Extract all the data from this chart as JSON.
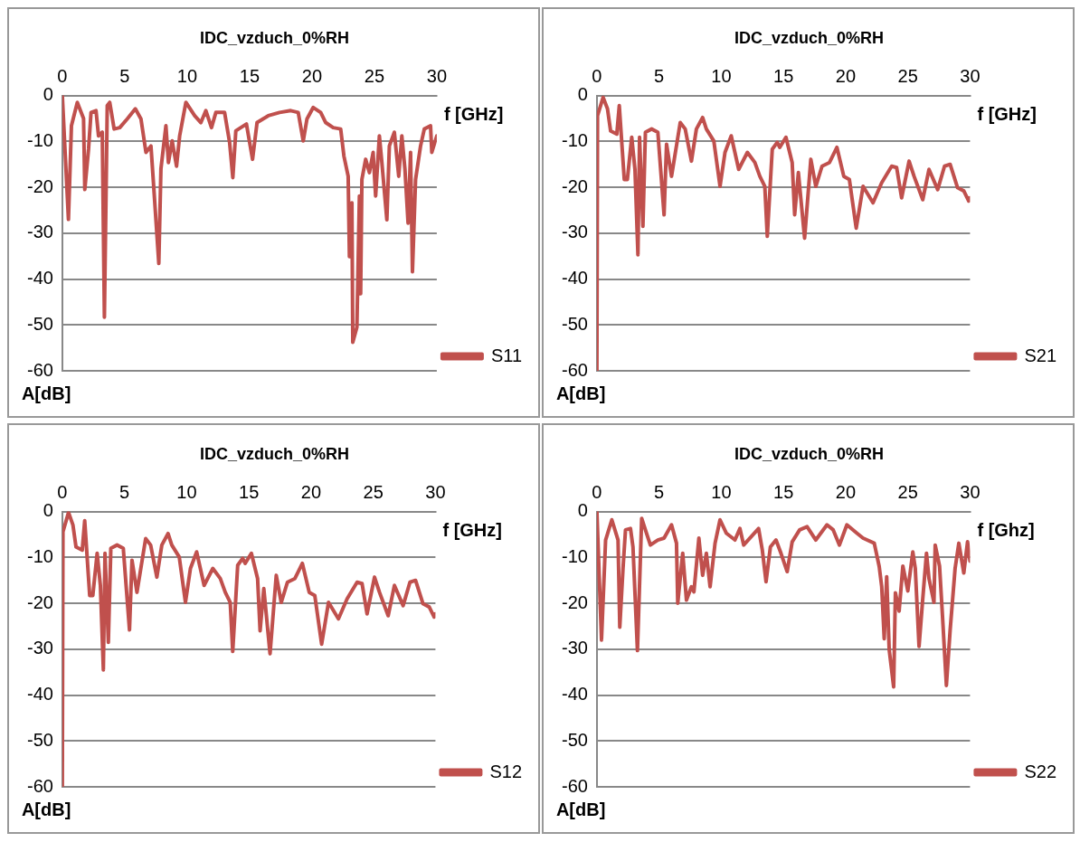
{
  "chart_data": [
    {
      "type": "line",
      "title": "IDC_vzduch_0%RH",
      "xlabel": "f [GHz]",
      "ylabel": "A[dB]",
      "xlim": [
        0,
        30
      ],
      "xticks": [
        0,
        5,
        10,
        15,
        20,
        25,
        30
      ],
      "ylim": [
        -60,
        0
      ],
      "yticks": [
        -60,
        -50,
        -40,
        -30,
        -20,
        -10,
        0
      ],
      "grid": "y",
      "legend": "right",
      "series": [
        {
          "name": "S11",
          "color": "#c0504d",
          "x": [
            0,
            0.49,
            0.73,
            1.2,
            1.7,
            1.8,
            2.1,
            2.3,
            2.7,
            2.9,
            3.2,
            3.37,
            3.6,
            3.8,
            4.15,
            4.6,
            5.2,
            5.85,
            6.3,
            6.7,
            7.1,
            7.3,
            7.73,
            7.9,
            8.3,
            8.5,
            8.8,
            9.15,
            9.4,
            9.9,
            10.6,
            11.1,
            11.5,
            11.95,
            12.3,
            13.0,
            13.4,
            13.66,
            13.9,
            14.75,
            15.24,
            15.6,
            16.5,
            17.4,
            18.3,
            18.9,
            19.3,
            19.6,
            20.1,
            20.7,
            21.1,
            21.7,
            22.3,
            22.56,
            22.9,
            23.0,
            23.2,
            23.27,
            23.6,
            23.8,
            23.9,
            24.0,
            24.3,
            24.6,
            24.9,
            25.1,
            25.4,
            25.6,
            26.0,
            26.2,
            26.6,
            26.95,
            27.2,
            27.45,
            27.7,
            27.9,
            28.05,
            28.3,
            28.7,
            29.0,
            29.5,
            29.6,
            30
          ],
          "values": [
            0,
            -27,
            -6.6,
            -1.5,
            -5,
            -20.5,
            -11.7,
            -3.7,
            -3.3,
            -8.8,
            -8,
            -48.3,
            -2.2,
            -1.5,
            -7.3,
            -7,
            -5.1,
            -2.9,
            -5.1,
            -12.4,
            -11,
            -19,
            -36.6,
            -16,
            -6.6,
            -14.6,
            -9.9,
            -15.4,
            -8.8,
            -1.5,
            -4.4,
            -5.9,
            -3.3,
            -7,
            -3.7,
            -3.7,
            -10.2,
            -17.9,
            -7.7,
            -6.2,
            -13.9,
            -5.9,
            -4.4,
            -3.7,
            -3.3,
            -3.7,
            -9.9,
            -5.1,
            -2.6,
            -3.7,
            -5.9,
            -7,
            -7.3,
            -13.2,
            -17.6,
            -35.1,
            -23.4,
            -53.8,
            -50.5,
            -21.9,
            -43.2,
            -18.3,
            -13.9,
            -16.8,
            -12.4,
            -21.9,
            -8.8,
            -14.6,
            -27.1,
            -11,
            -8,
            -17.6,
            -8.8,
            -16.1,
            -27.8,
            -12.4,
            -38.4,
            -18.3,
            -11,
            -7.3,
            -6.6,
            -12.4,
            -8.8
          ]
        }
      ]
    },
    {
      "type": "line",
      "title": "IDC_vzduch_0%RH",
      "xlabel": "f [GHz]",
      "ylabel": "A[dB]",
      "xlim": [
        0,
        30
      ],
      "xticks": [
        0,
        5,
        10,
        15,
        20,
        25,
        30
      ],
      "ylim": [
        -60,
        0
      ],
      "yticks": [
        -60,
        -50,
        -40,
        -30,
        -20,
        -10,
        0
      ],
      "grid": "y",
      "legend": "right",
      "series": [
        {
          "name": "S21",
          "color": "#c0504d",
          "x": [
            0,
            0.05,
            0.5,
            0.85,
            1.1,
            1.6,
            1.8,
            2.2,
            2.45,
            2.8,
            3.06,
            3.3,
            3.43,
            3.7,
            3.9,
            4.4,
            4.9,
            5.4,
            5.6,
            6.0,
            6.7,
            7.1,
            7.6,
            8.0,
            8.5,
            8.8,
            9.4,
            9.9,
            10.3,
            10.8,
            11.4,
            12.1,
            12.7,
            13.1,
            13.5,
            13.7,
            14.1,
            14.5,
            14.7,
            15.2,
            15.7,
            15.9,
            16.2,
            16.7,
            17.2,
            17.6,
            18.1,
            18.7,
            19.3,
            19.85,
            20.3,
            20.85,
            21.4,
            22.2,
            22.9,
            23.7,
            24.1,
            24.5,
            25.1,
            25.5,
            26.2,
            26.7,
            27.4,
            27.95,
            28.4,
            29.0,
            29.5,
            29.9,
            30
          ],
          "values": [
            -60,
            -4.4,
            -0.4,
            -2.9,
            -7.7,
            -8.4,
            -2.2,
            -18.3,
            -18.3,
            -9.1,
            -16.1,
            -34.7,
            -9.1,
            -28.5,
            -8,
            -7.3,
            -8,
            -26,
            -10.6,
            -17.6,
            -5.9,
            -7.3,
            -14.3,
            -7.3,
            -4.8,
            -7.3,
            -9.9,
            -19.8,
            -12.4,
            -8.8,
            -16.1,
            -12.4,
            -14.6,
            -17.6,
            -19.8,
            -30.7,
            -11.7,
            -10.2,
            -11.3,
            -9.1,
            -14.6,
            -26,
            -16.8,
            -31.1,
            -13.9,
            -19.8,
            -15.4,
            -14.6,
            -11.3,
            -17.6,
            -18.3,
            -28.9,
            -19.8,
            -23.4,
            -19,
            -15.4,
            -15.7,
            -22.3,
            -14.3,
            -17.6,
            -22.7,
            -16.1,
            -20.5,
            -15.4,
            -15,
            -20.1,
            -20.8,
            -23,
            -22.3
          ]
        }
      ]
    },
    {
      "type": "line",
      "title": "IDC_vzduch_0%RH",
      "xlabel": "f [GHz]",
      "ylabel": "A[dB]",
      "xlim": [
        0,
        30
      ],
      "xticks": [
        0,
        5,
        10,
        15,
        20,
        25,
        30
      ],
      "ylim": [
        -60,
        0
      ],
      "yticks": [
        -60,
        -50,
        -40,
        -30,
        -20,
        -10,
        0
      ],
      "grid": "y",
      "legend": "right",
      "series": [
        {
          "name": "S12",
          "color": "#c0504d",
          "x": [
            0,
            0.05,
            0.5,
            0.85,
            1.1,
            1.6,
            1.8,
            2.2,
            2.45,
            2.8,
            3.06,
            3.3,
            3.43,
            3.7,
            3.9,
            4.4,
            4.9,
            5.4,
            5.6,
            6.0,
            6.7,
            7.1,
            7.6,
            8.0,
            8.5,
            8.8,
            9.4,
            9.9,
            10.3,
            10.8,
            11.4,
            12.1,
            12.7,
            13.1,
            13.5,
            13.7,
            14.1,
            14.5,
            14.7,
            15.2,
            15.7,
            15.9,
            16.2,
            16.7,
            17.2,
            17.6,
            18.1,
            18.7,
            19.3,
            19.85,
            20.3,
            20.85,
            21.4,
            22.2,
            22.9,
            23.7,
            24.1,
            24.5,
            25.1,
            25.5,
            26.2,
            26.7,
            27.4,
            27.95,
            28.4,
            29.0,
            29.5,
            29.9,
            30
          ],
          "values": [
            -60,
            -4.4,
            -0.2,
            -2.9,
            -7.7,
            -8.4,
            -2,
            -18.3,
            -18.3,
            -9.1,
            -16.1,
            -34.5,
            -9.1,
            -28.5,
            -8,
            -7.3,
            -8,
            -25.8,
            -10.6,
            -17.6,
            -5.9,
            -7.3,
            -14.3,
            -7.3,
            -4.8,
            -7.3,
            -9.9,
            -19.8,
            -12.4,
            -8.8,
            -16.1,
            -12.4,
            -14.6,
            -17.6,
            -19.8,
            -30.5,
            -11.7,
            -10.2,
            -11.3,
            -9.1,
            -14.6,
            -26,
            -16.8,
            -31,
            -13.9,
            -19.8,
            -15.4,
            -14.6,
            -11.3,
            -17.6,
            -18.3,
            -28.9,
            -19.8,
            -23.4,
            -19,
            -15.4,
            -15.7,
            -22.3,
            -14.3,
            -17.6,
            -22.7,
            -16.1,
            -20.5,
            -15.4,
            -15,
            -20.1,
            -20.8,
            -23,
            -22.3
          ]
        }
      ]
    },
    {
      "type": "line",
      "title": "IDC_vzduch_0%RH",
      "xlabel": "f [Ghz]",
      "ylabel": "A[dB]",
      "xlim": [
        0,
        30
      ],
      "xticks": [
        0,
        5,
        10,
        15,
        20,
        25,
        30
      ],
      "ylim": [
        -60,
        0
      ],
      "yticks": [
        -60,
        -50,
        -40,
        -30,
        -20,
        -10,
        0
      ],
      "grid": "y",
      "legend": "right",
      "series": [
        {
          "name": "S22",
          "color": "#c0504d",
          "x": [
            0,
            0.37,
            0.7,
            1.2,
            1.7,
            1.84,
            2.1,
            2.3,
            2.7,
            2.9,
            3.26,
            3.6,
            3.9,
            4.3,
            4.9,
            5.4,
            6.0,
            6.4,
            6.5,
            6.9,
            7.2,
            7.6,
            7.8,
            8.2,
            8.5,
            8.8,
            9.1,
            9.5,
            9.9,
            10.4,
            11.1,
            11.5,
            11.8,
            13.0,
            13.3,
            13.6,
            13.95,
            14.4,
            14.8,
            15.3,
            15.7,
            16.3,
            16.9,
            17.6,
            18.5,
            19.0,
            19.5,
            20.1,
            20.9,
            21.4,
            22.3,
            22.7,
            22.9,
            23.1,
            23.3,
            23.5,
            23.86,
            24.0,
            24.3,
            24.6,
            25.0,
            25.4,
            25.6,
            25.9,
            26.2,
            26.5,
            26.7,
            27.1,
            27.2,
            27.55,
            27.8,
            28.1,
            28.4,
            28.8,
            29.1,
            29.5,
            29.8,
            30
          ],
          "values": [
            0,
            -28,
            -6.2,
            -1.8,
            -6.2,
            -25.2,
            -12.4,
            -4,
            -3.7,
            -7.7,
            -30.3,
            -1.5,
            -4,
            -7.3,
            -6.2,
            -5.8,
            -2.9,
            -6.9,
            -20,
            -9.1,
            -19.3,
            -16.4,
            -17.5,
            -5.8,
            -13.9,
            -9.1,
            -16.4,
            -6.9,
            -1.8,
            -4.7,
            -6.2,
            -3.7,
            -7.3,
            -3.7,
            -8.4,
            -15.3,
            -7.7,
            -6.2,
            -9.1,
            -13.1,
            -6.6,
            -4,
            -3.3,
            -6.2,
            -2.9,
            -4,
            -7.3,
            -2.9,
            -4.7,
            -5.8,
            -6.9,
            -12,
            -16.4,
            -27.7,
            -14.2,
            -30.1,
            -38.2,
            -17.7,
            -21.7,
            -11.9,
            -17.3,
            -8.8,
            -12.4,
            -29.4,
            -19,
            -9.1,
            -14.6,
            -19.8,
            -7.3,
            -11.9,
            -23.4,
            -37.9,
            -25.9,
            -12.4,
            -6.9,
            -13.4,
            -6.6,
            -10.8
          ]
        }
      ]
    }
  ]
}
